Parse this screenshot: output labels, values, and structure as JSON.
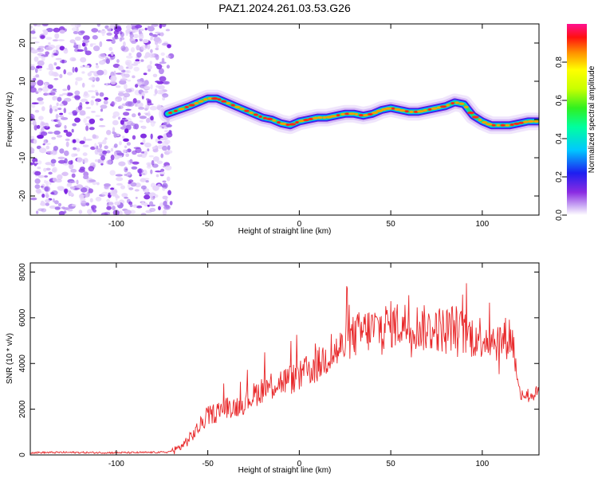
{
  "title": "PAZ1.2024.261.03.53.G26",
  "chart_data": [
    {
      "type": "heatmap",
      "title": "PAZ1.2024.261.03.53.G26",
      "xlabel": "Height of straight line (km)",
      "ylabel": "Frequency (Hz)",
      "xlim": [
        -147,
        131
      ],
      "ylim": [
        -25,
        25
      ],
      "xticks": [
        -100,
        -50,
        0,
        50,
        100
      ],
      "yticks": [
        -20,
        -10,
        0,
        10,
        20
      ],
      "grid": false,
      "noise_region": {
        "x_start": -147,
        "x_end": -70
      },
      "ridge": {
        "x": [
          -72,
          -66,
          -60,
          -55,
          -50,
          -45,
          -40,
          -35,
          -30,
          -25,
          -20,
          -15,
          -10,
          -5,
          0,
          5,
          10,
          15,
          20,
          25,
          30,
          35,
          40,
          45,
          50,
          55,
          60,
          65,
          70,
          75,
          80,
          85,
          90,
          95,
          100,
          105,
          110,
          115,
          120,
          125,
          131
        ],
        "y": [
          1.5,
          2.5,
          3.5,
          4.5,
          5.5,
          5.5,
          4.5,
          3.5,
          2.5,
          1.5,
          0.5,
          0,
          -1,
          -1.5,
          -0.5,
          0,
          0.5,
          0.5,
          1,
          1.5,
          1.5,
          1,
          1.5,
          2.5,
          3,
          2.5,
          2,
          2,
          2.5,
          3,
          3.5,
          4.5,
          4,
          1,
          -0.5,
          -1.5,
          -1.5,
          -1.5,
          -1,
          -0.5,
          -0.5
        ]
      },
      "colorbar": {
        "label": "Normalized spectral amplitude",
        "range": [
          0,
          1
        ],
        "ticks": [
          "0.0",
          "0.2",
          "0.4",
          "0.6",
          "0.8"
        ],
        "colormap": "rainbow"
      }
    },
    {
      "type": "line",
      "xlabel": "Height of straight line (km)",
      "ylabel": "SNR (10 * v/v)",
      "xlim": [
        -147,
        131
      ],
      "ylim": [
        0,
        8400
      ],
      "xticks": [
        -100,
        -50,
        0,
        50,
        100
      ],
      "yticks": [
        0,
        2000,
        4000,
        6000,
        8000
      ],
      "grid": false,
      "color": "#e8292b",
      "x": [
        -147,
        -130,
        -110,
        -90,
        -72,
        -66,
        -60,
        -55,
        -50,
        -45,
        -40,
        -35,
        -30,
        -25,
        -20,
        -15,
        -10,
        -5,
        0,
        5,
        10,
        15,
        20,
        25,
        30,
        35,
        40,
        45,
        50,
        55,
        60,
        65,
        70,
        75,
        80,
        85,
        90,
        95,
        100,
        105,
        110,
        115,
        117,
        120,
        125,
        131
      ],
      "values": [
        100,
        110,
        100,
        100,
        120,
        280,
        700,
        1200,
        1700,
        1900,
        2100,
        2100,
        2300,
        2600,
        2900,
        3100,
        3200,
        3300,
        3400,
        3700,
        3900,
        4300,
        4500,
        4800,
        5200,
        5400,
        5500,
        5600,
        5700,
        5700,
        5700,
        5600,
        5500,
        5500,
        5500,
        5600,
        5300,
        5200,
        5200,
        5100,
        5000,
        5200,
        4900,
        2800,
        2600,
        2700
      ]
    }
  ]
}
